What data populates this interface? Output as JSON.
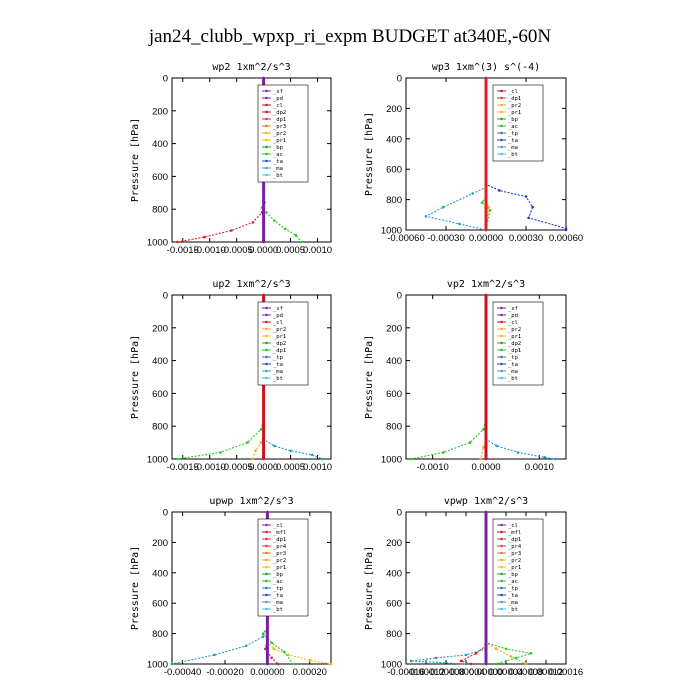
{
  "title": "jan24_clubb_wpxp_ri_expm  BUDGET at340E,-60N",
  "chart_data": [
    {
      "type": "line",
      "title": "wp2   1xm^2/s^3",
      "ylabel": "Pressure [hPa]",
      "ylim": [
        0,
        1000
      ],
      "xlim": [
        -0.0017,
        0.00125
      ],
      "xticks": [
        "-0.0015",
        "-0.0010",
        "-0.0005",
        "0.0000",
        "0.0005",
        "0.0010"
      ],
      "xtick_values": [
        -0.0015,
        -0.001,
        -0.0005,
        0,
        0.0005,
        0.001
      ],
      "yticks": [
        0,
        200,
        400,
        600,
        800,
        1000
      ],
      "legend": [
        "_sf",
        "_pd",
        "_cl",
        "_dp2",
        "_dp1",
        "_pr3",
        "_pr2",
        "_pr1",
        "_bp",
        "_ac",
        "_ta",
        "_ma",
        "_bt"
      ],
      "legend_colors": [
        "#7a1fa2",
        "#7a1fa2",
        "#cc1020",
        "#cc1020",
        "#d03030",
        "#e07820",
        "#f0a820",
        "#f0c000",
        "#20a020",
        "#20c020",
        "#2040c0",
        "#40a0c0",
        "#40c0e0"
      ],
      "series": [
        {
          "name": "_pr1",
          "color": "#22cc22",
          "style": "dash",
          "points": [
            [
              0,
              0
            ],
            [
              0,
              720
            ],
            [
              2e-05,
              760
            ],
            [
              -3e-05,
              790
            ],
            [
              5e-05,
              820
            ],
            [
              0.0002,
              870
            ],
            [
              0.0004,
              920
            ],
            [
              0.0006,
              960
            ],
            [
              0.0007,
              1000
            ]
          ]
        },
        {
          "name": "_dp1",
          "color": "#e02020",
          "style": "dash",
          "points": [
            [
              0,
              0
            ],
            [
              0,
              780
            ],
            [
              -3e-05,
              820
            ],
            [
              -0.0002,
              880
            ],
            [
              -0.0006,
              930
            ],
            [
              -0.0011,
              970
            ],
            [
              -0.0016,
              1000
            ]
          ]
        },
        {
          "name": "_bt",
          "color": "#7a1fa2",
          "style": "solid",
          "points": [
            [
              0,
              0
            ],
            [
              0,
              1000
            ]
          ]
        }
      ]
    },
    {
      "type": "line",
      "title": "wp3   1xm^(3) s^(-4)",
      "ylabel": "Pressure [hPa]",
      "ylim": [
        0,
        1000
      ],
      "xlim": [
        -0.0006,
        0.0006
      ],
      "xticks": [
        "-0.00060",
        "-0.00030",
        "0.00000",
        "0.00030",
        "0.00060"
      ],
      "xtick_values": [
        -0.0006,
        -0.0003,
        0,
        0.0003,
        0.0006
      ],
      "yticks": [
        0,
        200,
        400,
        600,
        800,
        1000
      ],
      "legend": [
        "_cl",
        "_dp1",
        "_pr2",
        "_pr1",
        "_bp",
        "_ac",
        "_tp",
        "_ta",
        "_ma",
        "_bt"
      ],
      "legend_colors": [
        "#cc1020",
        "#d03030",
        "#f0a820",
        "#f0c000",
        "#20a020",
        "#20c020",
        "#2070c0",
        "#2040c0",
        "#40a0c0",
        "#40c0e0"
      ],
      "series": [
        {
          "name": "_tp",
          "color": "#1a3ad0",
          "style": "dash",
          "points": [
            [
              0,
              0
            ],
            [
              0,
              700
            ],
            [
              0.0001,
              740
            ],
            [
              0.0003,
              780
            ],
            [
              0.00035,
              850
            ],
            [
              0.00032,
              920
            ],
            [
              0.0006,
              990
            ],
            [
              0.0006,
              1000
            ]
          ]
        },
        {
          "name": "_ta",
          "color": "#20a0c0",
          "style": "dash",
          "points": [
            [
              0,
              0
            ],
            [
              0,
              720
            ],
            [
              -0.0001,
              760
            ],
            [
              -0.00032,
              850
            ],
            [
              -0.00045,
              910
            ],
            [
              -0.0002,
              960
            ],
            [
              0,
              1000
            ]
          ]
        },
        {
          "name": "_bp",
          "color": "#22cc22",
          "style": "dash",
          "points": [
            [
              0,
              0
            ],
            [
              0,
              780
            ],
            [
              -3e-05,
              820
            ],
            [
              3e-05,
              870
            ],
            [
              0,
              1000
            ]
          ]
        },
        {
          "name": "_pr2",
          "color": "#f0a820",
          "style": "dash",
          "points": [
            [
              0,
              0
            ],
            [
              0,
              800
            ],
            [
              2e-05,
              850
            ],
            [
              0,
              1000
            ]
          ]
        },
        {
          "name": "_dp1",
          "color": "#e02020",
          "style": "solid",
          "points": [
            [
              0,
              0
            ],
            [
              0,
              1000
            ]
          ]
        }
      ]
    },
    {
      "type": "line",
      "title": "up2   1xm^2/s^3",
      "ylabel": "Pressure [hPa]",
      "ylim": [
        0,
        1000
      ],
      "xlim": [
        -0.0017,
        0.00125
      ],
      "xticks": [
        "-0.0015",
        "-0.0010",
        "-0.0005",
        "0.0000",
        "0.0005",
        "0.0010"
      ],
      "xtick_values": [
        -0.0015,
        -0.001,
        -0.0005,
        0,
        0.0005,
        0.001
      ],
      "yticks": [
        0,
        200,
        400,
        600,
        800,
        1000
      ],
      "legend": [
        "_sf",
        "_pd",
        "_cl",
        "_pr2",
        "_pr1",
        "_dp2",
        "_dp1",
        "_tp",
        "_ta",
        "_ma",
        "_bt"
      ],
      "legend_colors": [
        "#7a1fa2",
        "#7a1fa2",
        "#cc1020",
        "#f0a820",
        "#f0c000",
        "#20a020",
        "#20c020",
        "#2070c0",
        "#2040c0",
        "#40a0c0",
        "#40c0e0"
      ],
      "series": [
        {
          "name": "_ta",
          "color": "#20a0c0",
          "style": "dash",
          "points": [
            [
              0,
              0
            ],
            [
              0,
              880
            ],
            [
              0.0002,
              920
            ],
            [
              0.0005,
              950
            ],
            [
              0.0009,
              975
            ],
            [
              0.0011,
              1000
            ]
          ]
        },
        {
          "name": "_dp2",
          "color": "#22cc22",
          "style": "dash",
          "points": [
            [
              0,
              0
            ],
            [
              0,
              760
            ],
            [
              -5e-05,
              820
            ],
            [
              -0.0003,
              900
            ],
            [
              -0.0008,
              960
            ],
            [
              -0.0016,
              1000
            ]
          ]
        },
        {
          "name": "_pr2",
          "color": "#f0a820",
          "style": "dash",
          "points": [
            [
              0,
              0
            ],
            [
              0,
              860
            ],
            [
              -5e-05,
              900
            ],
            [
              -0.00015,
              950
            ],
            [
              -0.0002,
              1000
            ]
          ]
        },
        {
          "name": "_bt",
          "color": "#cc1020",
          "style": "solid",
          "points": [
            [
              0,
              0
            ],
            [
              0,
              1000
            ]
          ]
        }
      ]
    },
    {
      "type": "line",
      "title": "vp2   1xm^2/s^3",
      "ylabel": "Pressure [hPa]",
      "ylim": [
        0,
        1000
      ],
      "xlim": [
        -0.0015,
        0.0015
      ],
      "xticks": [
        "-0.0010",
        "0.0000",
        "0.0010"
      ],
      "xtick_values": [
        -0.001,
        0,
        0.001
      ],
      "yticks": [
        0,
        200,
        400,
        600,
        800,
        1000
      ],
      "legend": [
        "_sf",
        "_pd",
        "_cl",
        "_pr2",
        "_pr1",
        "_dp2",
        "_dp1",
        "_tp",
        "_ta",
        "_ma",
        "_bt"
      ],
      "legend_colors": [
        "#7a1fa2",
        "#7a1fa2",
        "#cc1020",
        "#f0a820",
        "#f0c000",
        "#20a020",
        "#20c020",
        "#2070c0",
        "#2040c0",
        "#40a0c0",
        "#40c0e0"
      ],
      "series": [
        {
          "name": "_ta",
          "color": "#20a0c0",
          "style": "dash",
          "points": [
            [
              0,
              0
            ],
            [
              0,
              880
            ],
            [
              0.0002,
              920
            ],
            [
              0.0006,
              960
            ],
            [
              0.0011,
              990
            ],
            [
              0.0013,
              1000
            ]
          ]
        },
        {
          "name": "_dp2",
          "color": "#22cc22",
          "style": "dash",
          "points": [
            [
              0,
              0
            ],
            [
              0,
              760
            ],
            [
              -5e-05,
              820
            ],
            [
              -0.0003,
              900
            ],
            [
              -0.0008,
              960
            ],
            [
              -0.0014,
              1000
            ]
          ]
        },
        {
          "name": "_pr2",
          "color": "#f0a820",
          "style": "dash",
          "points": [
            [
              0,
              0
            ],
            [
              0,
              880
            ],
            [
              -5e-05,
              930
            ],
            [
              -0.0001,
              1000
            ]
          ]
        },
        {
          "name": "_bt",
          "color": "#cc1020",
          "style": "solid",
          "points": [
            [
              0,
              0
            ],
            [
              0,
              1000
            ]
          ]
        }
      ]
    },
    {
      "type": "line",
      "title": "upwp   1xm^2/s^3",
      "ylabel": "Pressure [hPa]",
      "ylim": [
        0,
        1000
      ],
      "xlim": [
        -0.00045,
        0.0003
      ],
      "xticks": [
        "-0.00040",
        "-0.00020",
        "0.00000",
        "0.00020"
      ],
      "xtick_values": [
        -0.0004,
        -0.0002,
        0,
        0.0002
      ],
      "yticks": [
        0,
        200,
        400,
        600,
        800,
        1000
      ],
      "legend": [
        "_cl",
        "_mfl",
        "_dp1",
        "_pr4",
        "_pr3",
        "_pr2",
        "_pr1",
        "_bp",
        "_ac",
        "_tp",
        "_ta",
        "_ma",
        "_bt"
      ],
      "legend_colors": [
        "#7a1fa2",
        "#cc1020",
        "#d03030",
        "#e03050",
        "#e07820",
        "#f0a820",
        "#f0c000",
        "#20a020",
        "#20c020",
        "#2070c0",
        "#2040c0",
        "#40a0c0",
        "#40c0e0"
      ],
      "series": [
        {
          "name": "_ta",
          "color": "#20a0c0",
          "style": "dash",
          "points": [
            [
              0,
              0
            ],
            [
              0,
              760
            ],
            [
              -2e-05,
              820
            ],
            [
              -0.0001,
              880
            ],
            [
              -0.00025,
              940
            ],
            [
              -0.00045,
              1000
            ]
          ]
        },
        {
          "name": "_pr1",
          "color": "#f0c000",
          "style": "dash",
          "points": [
            [
              0,
              0
            ],
            [
              0,
              860
            ],
            [
              3e-05,
              900
            ],
            [
              0.0001,
              940
            ],
            [
              0.0002,
              975
            ],
            [
              0.0003,
              1000
            ]
          ]
        },
        {
          "name": "_bp",
          "color": "#22cc22",
          "style": "dash",
          "points": [
            [
              0,
              0
            ],
            [
              0,
              760
            ],
            [
              -2e-05,
              800
            ],
            [
              2e-05,
              860
            ],
            [
              8e-05,
              920
            ],
            [
              0.00012,
              1000
            ]
          ]
        },
        {
          "name": "_dp1",
          "color": "#e02020",
          "style": "dash",
          "points": [
            [
              0,
              0
            ],
            [
              0,
              840
            ],
            [
              -1e-05,
              900
            ],
            [
              2e-05,
              960
            ],
            [
              5e-05,
              1000
            ]
          ]
        },
        {
          "name": "_cl",
          "color": "#7a1fa2",
          "style": "solid",
          "points": [
            [
              0,
              0
            ],
            [
              0,
              1000
            ]
          ]
        }
      ]
    },
    {
      "type": "line",
      "title": "vpwp   1xm^2/s^3",
      "ylabel": "Pressure [hPa]",
      "ylim": [
        0,
        1000
      ],
      "xlim": [
        -0.00016,
        0.00016
      ],
      "xticks": [
        "-0.00016",
        "-0.00012",
        "-0.00008",
        "-0.00004",
        "0.00000",
        "0.00004",
        "0.00008",
        "0.00012",
        "0.00016"
      ],
      "xtick_values": [
        -0.00016,
        -0.00012,
        -8e-05,
        -4e-05,
        0,
        4e-05,
        8e-05,
        0.00012,
        0.00016
      ],
      "yticks": [
        0,
        200,
        400,
        600,
        800,
        1000
      ],
      "legend": [
        "_cl",
        "_mfl",
        "_dp1",
        "_pr4",
        "_pr3",
        "_pr2",
        "_pr1",
        "_bp",
        "_ac",
        "_tp",
        "_ta",
        "_ma",
        "_bt"
      ],
      "legend_colors": [
        "#7a1fa2",
        "#cc1020",
        "#d03030",
        "#e03050",
        "#e07820",
        "#f0a820",
        "#f0c000",
        "#20a020",
        "#20c020",
        "#2070c0",
        "#2040c0",
        "#40a0c0",
        "#40c0e0"
      ],
      "series": [
        {
          "name": "_pr2",
          "color": "#f0a820",
          "style": "dash",
          "points": [
            [
              0,
              0
            ],
            [
              0,
              860
            ],
            [
              2e-05,
              900
            ],
            [
              5e-05,
              950
            ],
            [
              8e-05,
              1000
            ]
          ]
        },
        {
          "name": "_ac",
          "color": "#22cc22",
          "style": "dash",
          "points": [
            [
              0,
              0
            ],
            [
              0,
              860
            ],
            [
              4e-05,
              900
            ],
            [
              9e-05,
              930
            ],
            [
              6e-05,
              960
            ],
            [
              2e-05,
              1000
            ]
          ]
        },
        {
          "name": "_ta",
          "color": "#20a0c0",
          "style": "dash",
          "points": [
            [
              0,
              0
            ],
            [
              0,
              900
            ],
            [
              -4e-05,
              940
            ],
            [
              -0.0001,
              960
            ],
            [
              -0.00015,
              980
            ],
            [
              -4e-05,
              1000
            ]
          ]
        },
        {
          "name": "_dp1",
          "color": "#e02020",
          "style": "dash",
          "points": [
            [
              0,
              0
            ],
            [
              0,
              880
            ],
            [
              -2e-05,
              930
            ],
            [
              -5e-05,
              980
            ],
            [
              -3e-05,
              1000
            ]
          ]
        },
        {
          "name": "_cl",
          "color": "#7a1fa2",
          "style": "solid",
          "points": [
            [
              0,
              0
            ],
            [
              0,
              1000
            ]
          ]
        }
      ]
    }
  ]
}
